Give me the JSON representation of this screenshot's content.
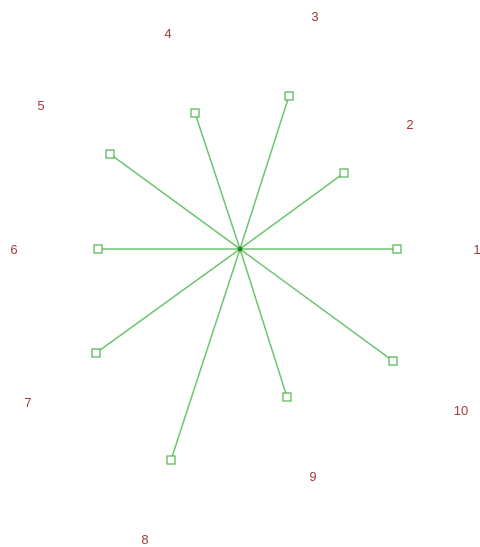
{
  "colors": {
    "line": "#6cc46c",
    "handle": "#4fb24f",
    "center": "#1f8a1f",
    "label": "#a23a3a"
  },
  "labels": [
    "1",
    "2",
    "3",
    "4",
    "5",
    "6",
    "7",
    "8",
    "9",
    "10"
  ]
}
